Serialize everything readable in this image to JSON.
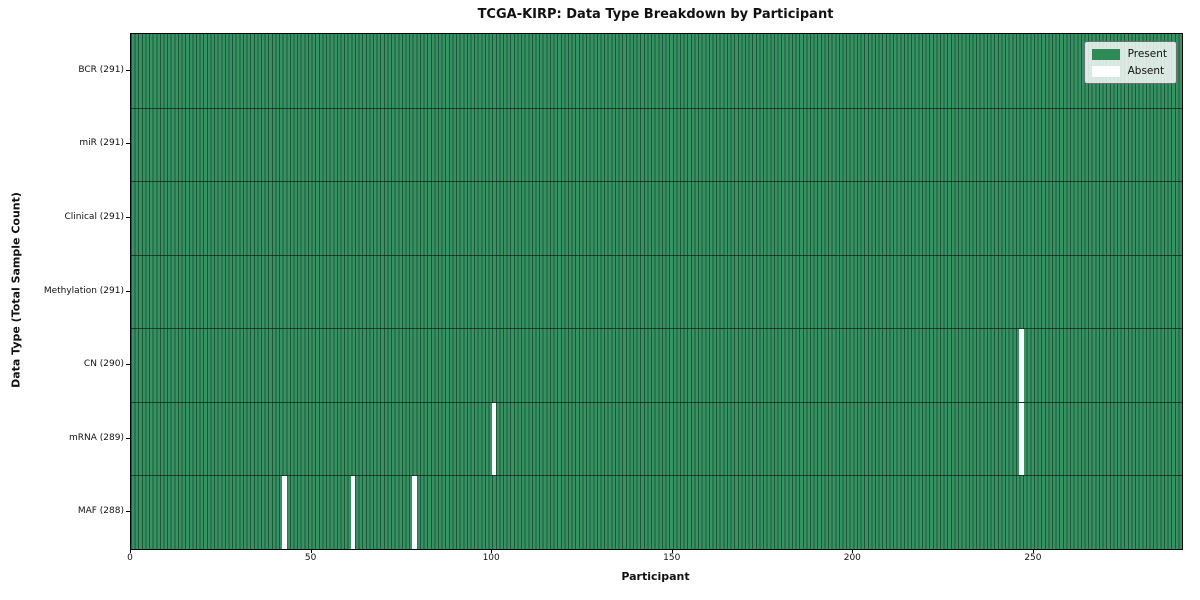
{
  "chart_data": {
    "type": "heatmap",
    "title": "TCGA-KIRP: Data Type Breakdown by Participant",
    "xlabel": "Participant",
    "ylabel": "Data Type (Total Sample Count)",
    "n_participants": 291,
    "x_range": [
      0,
      291
    ],
    "xticks": [
      0,
      50,
      100,
      150,
      200,
      250
    ],
    "grid": false,
    "rows": [
      {
        "name": "BCR",
        "label": "BCR (291)",
        "count": 291,
        "absent_participants": []
      },
      {
        "name": "miR",
        "label": "miR (291)",
        "count": 291,
        "absent_participants": []
      },
      {
        "name": "Clinical",
        "label": "Clinical (291)",
        "count": 291,
        "absent_participants": []
      },
      {
        "name": "Methylation",
        "label": "Methylation (291)",
        "count": 291,
        "absent_participants": []
      },
      {
        "name": "CN",
        "label": "CN (290)",
        "count": 290,
        "absent_participants": [
          246
        ]
      },
      {
        "name": "mRNA",
        "label": "mRNA (289)",
        "count": 289,
        "absent_participants": [
          100,
          246
        ]
      },
      {
        "name": "MAF",
        "label": "MAF (288)",
        "count": 288,
        "absent_participants": [
          42,
          61,
          78
        ]
      }
    ],
    "legend": {
      "position": "upper right",
      "entries": [
        {
          "label": "Present",
          "color": "#2e8b57"
        },
        {
          "label": "Absent",
          "color": "#ffffff"
        }
      ]
    },
    "colors": {
      "present_fill": "#359363",
      "present_legend": "#2e8b57",
      "absent": "#ffffff",
      "bar_edge": "rgba(0,0,0,0.42)",
      "row_divider": "rgba(0,0,0,0.55)",
      "spine": "#000000",
      "background": "#ffffff"
    }
  }
}
